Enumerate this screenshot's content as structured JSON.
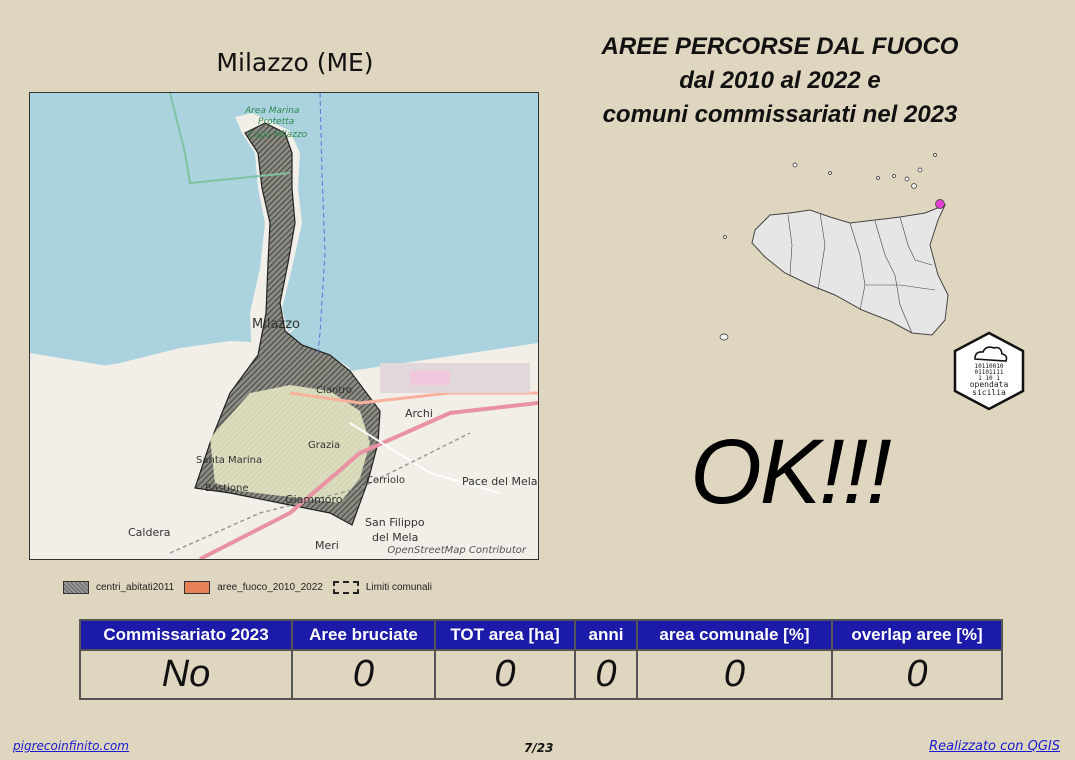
{
  "map": {
    "title": "Milazzo (ME)",
    "attribution": "OpenStreetMap Contributor",
    "place_labels": [
      "Area Marina",
      "Protetta",
      "Capo Milazzo",
      "Milazzo",
      "Archi",
      "Pace del Mela",
      "Caldera",
      "Giammoro",
      "San Filippo",
      "del Mela",
      "Meri",
      "Santa Marina",
      "Grazia",
      "Bastione",
      "Ciantro",
      "Corriolo"
    ]
  },
  "header": {
    "title_line1": "AREE PERCORSE DAL FUOCO",
    "title_line2": "dal 2010 al 2022 e",
    "title_line3": "comuni commissariati nel 2023"
  },
  "legend": [
    {
      "label": "centri_abitati2011",
      "icon": "hatched-swatch"
    },
    {
      "label": "aree_fuoco_2010_2022",
      "icon": "orange-swatch",
      "color": "#e8805a"
    },
    {
      "label": "Limiti comunali",
      "icon": "dashed-outline-swatch"
    }
  ],
  "inset": {
    "region": "Sicilia",
    "marker_color": "#e040d0",
    "logo_text_line1": "opendata",
    "logo_text_line2": "sicilia"
  },
  "status": {
    "text": "OK!!!"
  },
  "table": {
    "headers": [
      "Commissariato 2023",
      "Aree bruciate",
      "TOT area [ha]",
      "anni",
      "area comunale [%]",
      "overlap aree [%]"
    ],
    "values": [
      "No",
      "0",
      "0",
      "0",
      "0",
      "0"
    ]
  },
  "footer": {
    "left": "pigrecoinfinito.com",
    "page": "7/23",
    "right": "Realizzato con QGIS"
  },
  "colors": {
    "background": "#ded6bf",
    "sea": "#aad3df",
    "table_header": "#1c1aa8",
    "link": "#1a1ad0"
  }
}
